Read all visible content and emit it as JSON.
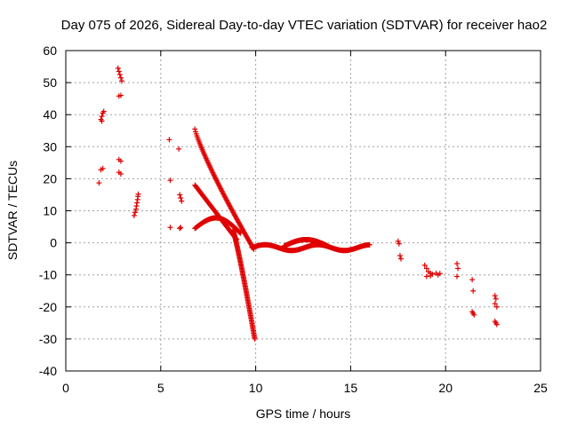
{
  "chart_data": {
    "type": "scatter",
    "title": "Day 075 of 2026, Sidereal Day-to-day VTEC variation (SDTVAR) for receiver hao2",
    "xlabel": "GPS time / hours",
    "ylabel": "SDTVAR / TECUs",
    "xlim": [
      0,
      25
    ],
    "ylim": [
      -40,
      60
    ],
    "xticks": [
      "0",
      "5",
      "10",
      "15",
      "20",
      "25"
    ],
    "yticks": [
      "-40",
      "-30",
      "-20",
      "-10",
      "0",
      "10",
      "20",
      "30",
      "40",
      "50",
      "60"
    ],
    "grid": true,
    "marker": "plus",
    "series_color": "#e00000",
    "points": [
      [
        1.75,
        18.7
      ],
      [
        1.85,
        22.8
      ],
      [
        1.95,
        23.2
      ],
      [
        1.85,
        38.5
      ],
      [
        1.9,
        39.5
      ],
      [
        1.95,
        40.5
      ],
      [
        2.0,
        41.0
      ],
      [
        1.9,
        38.0
      ],
      [
        2.75,
        54.5
      ],
      [
        2.8,
        53.5
      ],
      [
        2.85,
        52.5
      ],
      [
        2.9,
        51.5
      ],
      [
        2.95,
        50.5
      ],
      [
        2.8,
        45.8
      ],
      [
        2.9,
        46.0
      ],
      [
        2.8,
        26.0
      ],
      [
        2.9,
        25.5
      ],
      [
        2.8,
        22.0
      ],
      [
        2.9,
        21.5
      ],
      [
        3.6,
        8.5
      ],
      [
        3.65,
        9.5
      ],
      [
        3.7,
        10.5
      ],
      [
        3.72,
        11.5
      ],
      [
        3.75,
        12.5
      ],
      [
        3.78,
        13.5
      ],
      [
        3.8,
        14.5
      ],
      [
        3.82,
        15.2
      ],
      [
        5.45,
        32.2
      ],
      [
        5.5,
        19.5
      ],
      [
        5.5,
        4.8
      ],
      [
        5.95,
        29.3
      ],
      [
        6.0,
        15.0
      ],
      [
        6.05,
        14.0
      ],
      [
        6.1,
        13.0
      ],
      [
        6.0,
        4.5
      ],
      [
        6.05,
        4.8
      ],
      [
        17.5,
        0.5
      ],
      [
        17.55,
        -0.3
      ],
      [
        17.6,
        -4.0
      ],
      [
        17.65,
        -5.0
      ],
      [
        18.9,
        -7.0
      ],
      [
        19.0,
        -8.0
      ],
      [
        19.1,
        -9.0
      ],
      [
        19.2,
        -9.5
      ],
      [
        19.3,
        -9.8
      ],
      [
        19.5,
        -9.5
      ],
      [
        19.6,
        -10.0
      ],
      [
        19.7,
        -9.6
      ],
      [
        19.0,
        -10.5
      ],
      [
        19.2,
        -10.3
      ],
      [
        20.6,
        -6.5
      ],
      [
        20.65,
        -8.0
      ],
      [
        20.6,
        -10.5
      ],
      [
        21.4,
        -11.5
      ],
      [
        21.45,
        -15.0
      ],
      [
        21.4,
        -21.5
      ],
      [
        21.45,
        -22.0
      ],
      [
        21.5,
        -22.5
      ],
      [
        22.6,
        -16.5
      ],
      [
        22.65,
        -17.5
      ],
      [
        22.6,
        -19.0
      ],
      [
        22.7,
        -20.0
      ],
      [
        22.6,
        -24.5
      ],
      [
        22.65,
        -25.0
      ],
      [
        22.7,
        -25.5
      ]
    ],
    "curves": [
      {
        "name": "falling-arc-upper",
        "from": [
          6.8,
          35.5
        ],
        "to": [
          9.9,
          -2.0
        ],
        "count": 90
      },
      {
        "name": "falling-arc-lower",
        "from": [
          6.8,
          18.0
        ],
        "to": [
          9.0,
          1.0
        ],
        "count": 60
      },
      {
        "name": "dip-track",
        "from": [
          8.8,
          4.0
        ],
        "to": [
          9.95,
          -30.0
        ],
        "count": 90
      },
      {
        "name": "hump-track",
        "from": [
          6.8,
          4.5
        ],
        "to": [
          9.2,
          3.0
        ],
        "peak": 8.5,
        "count": 70
      },
      {
        "name": "flat-track-a",
        "from": [
          9.8,
          -1.5
        ],
        "to": [
          16.0,
          -1.5
        ],
        "count": 150
      },
      {
        "name": "hump-13h",
        "from": [
          11.5,
          -1.0
        ],
        "to": [
          13.8,
          -1.0
        ],
        "peak": 1.0,
        "count": 70
      }
    ]
  }
}
